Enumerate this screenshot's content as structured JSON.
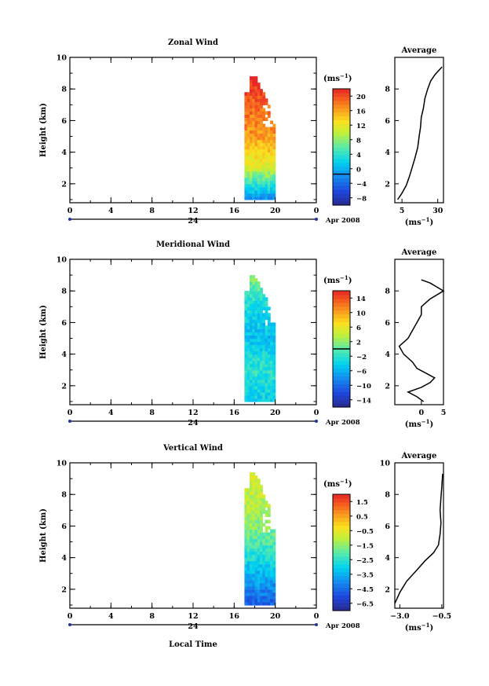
{
  "figure": {
    "date_label": "Apr 2008",
    "x_axis_title": "Local Time",
    "y_axis_title": "Height (km)",
    "unit_label": "(ms",
    "unit_sup": "−1",
    "avg_title": "Average"
  },
  "chart_data": [
    {
      "type": "heatmap",
      "title": "Zonal Wind",
      "xlabel": "Local Time",
      "ylabel": "Height (km)",
      "x_ticks": [
        "0",
        "4",
        "8",
        "12",
        "16",
        "20",
        "0"
      ],
      "day_label": "24",
      "ylim": [
        0.8,
        10
      ],
      "y_ticks": [
        "2",
        "4",
        "6",
        "8",
        "10"
      ],
      "colorbar": {
        "unit": "ms-1",
        "min": -8,
        "max": 22,
        "ticks": [
          "−8",
          "−4",
          "0",
          "4",
          "8",
          "12",
          "16",
          "20"
        ],
        "zero_line": 0
      },
      "data_extent": {
        "time_start": 17.0,
        "time_end": 20.0,
        "height_min": 1.0,
        "height_max": 8.8
      },
      "profile_trend": [
        [
          1.0,
          0
        ],
        [
          3,
          12
        ],
        [
          5,
          17
        ],
        [
          7,
          19
        ],
        [
          9,
          23
        ]
      ],
      "average": {
        "xlim": [
          0,
          34
        ],
        "x_ticks": [
          "5",
          "30"
        ],
        "y_ticks": [
          "2",
          "4",
          "6",
          "8"
        ],
        "xlabel": "(ms-1)",
        "profile": [
          [
            2,
            1.0
          ],
          [
            5,
            1.4
          ],
          [
            8,
            1.9
          ],
          [
            10,
            2.4
          ],
          [
            12,
            3.0
          ],
          [
            14,
            3.6
          ],
          [
            16,
            4.3
          ],
          [
            17,
            5.0
          ],
          [
            18,
            5.6
          ],
          [
            18.5,
            6.2
          ],
          [
            20,
            6.8
          ],
          [
            21,
            7.4
          ],
          [
            23,
            8.0
          ],
          [
            25,
            8.5
          ],
          [
            28,
            8.9
          ],
          [
            31,
            9.2
          ],
          [
            33,
            9.4
          ]
        ]
      }
    },
    {
      "type": "heatmap",
      "title": "Meridional Wind",
      "xlabel": "Local Time",
      "ylabel": "Height (km)",
      "x_ticks": [
        "0",
        "4",
        "8",
        "12",
        "16",
        "20",
        "0"
      ],
      "day_label": "24",
      "ylim": [
        0.8,
        10
      ],
      "y_ticks": [
        "2",
        "4",
        "6",
        "8",
        "10"
      ],
      "colorbar": {
        "unit": "ms-1",
        "min": -16,
        "max": 16,
        "ticks": [
          "−14",
          "−10",
          "−6",
          "−2",
          "2",
          "6",
          "10",
          "14"
        ],
        "zero_line": 0
      },
      "data_extent": {
        "time_start": 17.0,
        "time_end": 20.0,
        "height_min": 1.0,
        "height_max": 8.9
      },
      "profile_trend": [
        [
          1.0,
          -4
        ],
        [
          3,
          -2
        ],
        [
          5,
          -5
        ],
        [
          7,
          -3
        ],
        [
          9,
          2
        ]
      ],
      "average": {
        "xlim": [
          -6,
          5
        ],
        "x_ticks": [
          "0",
          "5"
        ],
        "y_ticks": [
          "2",
          "4",
          "6",
          "8"
        ],
        "xlabel": "(ms-1)",
        "profile": [
          [
            0.5,
            1.0
          ],
          [
            -1,
            1.3
          ],
          [
            -3,
            1.6
          ],
          [
            0,
            1.9
          ],
          [
            2,
            2.2
          ],
          [
            3,
            2.5
          ],
          [
            1,
            2.8
          ],
          [
            -1,
            3.1
          ],
          [
            -2,
            3.5
          ],
          [
            -4,
            4.0
          ],
          [
            -5,
            4.5
          ],
          [
            -3,
            5.0
          ],
          [
            -2,
            5.5
          ],
          [
            -1,
            6.0
          ],
          [
            0,
            6.5
          ],
          [
            0,
            7.0
          ],
          [
            2,
            7.5
          ],
          [
            5,
            8.0
          ],
          [
            2,
            8.5
          ],
          [
            0,
            8.7
          ]
        ]
      }
    },
    {
      "type": "heatmap",
      "title": "Vertical Wind",
      "xlabel": "Local Time",
      "ylabel": "Height (km)",
      "x_ticks": [
        "0",
        "4",
        "8",
        "12",
        "16",
        "20",
        "0"
      ],
      "day_label": "24",
      "ylim": [
        0.8,
        10
      ],
      "y_ticks": [
        "2",
        "4",
        "6",
        "8",
        "10"
      ],
      "colorbar": {
        "unit": "ms-1",
        "min": -7,
        "max": 2,
        "ticks": [
          "−6.5",
          "−4.5",
          "−3.5",
          "−2.5",
          "−1.5",
          "−0.5",
          "0.5",
          "1.5"
        ],
        "zero_line": null
      },
      "data_extent": {
        "time_start": 17.0,
        "time_end": 20.0,
        "height_min": 1.0,
        "height_max": 9.3
      },
      "profile_trend": [
        [
          1.0,
          -5.5
        ],
        [
          3,
          -4.0
        ],
        [
          5,
          -2.5
        ],
        [
          7,
          -1.5
        ],
        [
          9,
          -1.2
        ]
      ],
      "average": {
        "xlim": [
          -3.3,
          -0.4
        ],
        "x_ticks": [
          "−3.0",
          "−0.5"
        ],
        "y_ticks": [
          "2",
          "4",
          "6",
          "8",
          "10"
        ],
        "xlabel": "(ms-1)",
        "profile": [
          [
            -3.3,
            1.1
          ],
          [
            -3.0,
            1.8
          ],
          [
            -2.6,
            2.5
          ],
          [
            -2.0,
            3.2
          ],
          [
            -1.5,
            3.8
          ],
          [
            -1.0,
            4.3
          ],
          [
            -0.7,
            4.8
          ],
          [
            -0.6,
            5.5
          ],
          [
            -0.55,
            6.2
          ],
          [
            -0.6,
            7.0
          ],
          [
            -0.55,
            7.8
          ],
          [
            -0.5,
            8.5
          ],
          [
            -0.45,
            9.3
          ]
        ]
      }
    }
  ]
}
